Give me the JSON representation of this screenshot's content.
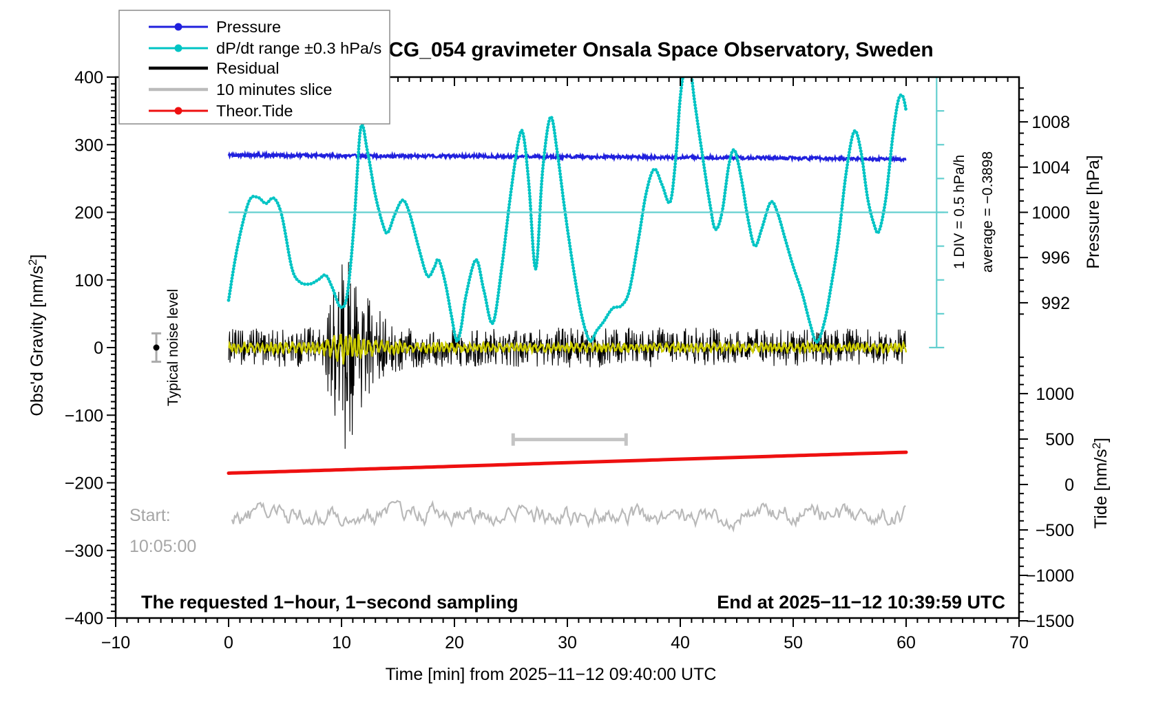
{
  "chart_data": {
    "type": "line",
    "title": "SCG_054 gravimeter Onsala Space Observatory, Sweden",
    "axes": {
      "x": {
        "label": "Time [min] from 2025−11−12 09:40:00 UTC",
        "min": -10,
        "max": 70,
        "major_step": 10,
        "minor_step": 1,
        "tick_values": [
          -10,
          0,
          10,
          20,
          30,
          40,
          50,
          60,
          70
        ],
        "tick_labels": [
          "−10",
          "0",
          "10",
          "20",
          "30",
          "40",
          "50",
          "60",
          "70"
        ]
      },
      "y_gravity": {
        "label": "Obs'd Gravity [nm/s²]",
        "min": -400,
        "max": 400,
        "major_step": 100,
        "minor_step": 10,
        "tick_values": [
          400,
          300,
          200,
          100,
          0,
          -100,
          -200,
          -300,
          -400
        ],
        "tick_labels": [
          "400",
          "300",
          "200",
          "100",
          "0",
          "−100",
          "−200",
          "−300",
          "−400"
        ]
      },
      "y_pressure": {
        "label": "Pressure [hPa]",
        "tick_values": [
          1008,
          1004,
          1000,
          996,
          992
        ],
        "tick_labels": [
          "1008",
          "1004",
          "1000",
          "996",
          "992"
        ],
        "minor_from": 1011,
        "minor_to": 991,
        "minor_step": 1
      },
      "y_tide": {
        "label": "Tide [nm/s²]",
        "tick_values": [
          1000,
          500,
          0,
          -500,
          -1000,
          -1500
        ],
        "tick_labels": [
          "1000",
          "500",
          "0",
          "−500",
          "−1000",
          "−1500"
        ],
        "minor_from": 1400,
        "minor_to": -1500,
        "minor_step": 100
      }
    },
    "legend": {
      "entries": [
        {
          "label": "Pressure",
          "color": "#2020dd",
          "marker": true,
          "line_width": 3
        },
        {
          "label": "dP/dt range ±0.3 hPa/s",
          "color": "#00c4c4",
          "marker": true,
          "line_width": 3
        },
        {
          "label": "Residual",
          "color": "#000000",
          "marker": false,
          "line_width": 4.5
        },
        {
          "label": "10 minutes slice",
          "color": "#bbbbbb",
          "marker": false,
          "line_width": 4.5
        },
        {
          "label": "Theor.Tide",
          "color": "#ee1010",
          "marker": true,
          "line_width": 3
        }
      ]
    },
    "series": {
      "pressure": {
        "name": "Pressure",
        "units": "hPa",
        "color": "#2020dd",
        "minutes_step": 5,
        "values_hpa": [
          1005.06,
          1005.03,
          1005.0,
          1004.98,
          1004.97,
          1004.94,
          1004.91,
          1004.89,
          1004.87,
          1004.84,
          1004.8,
          1004.74,
          1004.67
        ]
      },
      "dpdt": {
        "name": "dP/dt range ±0.3 hPa/s",
        "units": "display (gravity-axis scale), 1 DIV = 0.5 hPa/h",
        "color": "#00c4c4",
        "ref_color": "#63cfcf",
        "ref_line_level": 200,
        "scale_bar": {
          "x_min": 62.7,
          "g_from": 0,
          "g_to": 400,
          "div_units": 50
        },
        "points": [
          [
            0,
            70
          ],
          [
            0.8,
            150
          ],
          [
            1.8,
            216
          ],
          [
            2.6,
            222
          ],
          [
            3.3,
            213
          ],
          [
            4.0,
            221
          ],
          [
            4.7,
            196
          ],
          [
            5.6,
            118
          ],
          [
            6.3,
            97
          ],
          [
            7.2,
            94
          ],
          [
            8.0,
            101
          ],
          [
            8.6,
            107
          ],
          [
            9.2,
            88
          ],
          [
            9.9,
            60
          ],
          [
            10.5,
            78
          ],
          [
            11.1,
            180
          ],
          [
            11.7,
            325
          ],
          [
            12.3,
            290
          ],
          [
            13.0,
            225
          ],
          [
            13.7,
            180
          ],
          [
            14.1,
            170
          ],
          [
            14.7,
            196
          ],
          [
            15.4,
            218
          ],
          [
            16.0,
            200
          ],
          [
            16.8,
            150
          ],
          [
            17.6,
            106
          ],
          [
            18.2,
            118
          ],
          [
            18.6,
            130
          ],
          [
            19.2,
            95
          ],
          [
            19.7,
            50
          ],
          [
            20.2,
            10
          ],
          [
            20.6,
            30
          ],
          [
            21.0,
            75
          ],
          [
            21.9,
            130
          ],
          [
            22.6,
            85
          ],
          [
            23.4,
            36
          ],
          [
            24.2,
            120
          ],
          [
            25.0,
            230
          ],
          [
            25.7,
            308
          ],
          [
            26.1,
            315
          ],
          [
            26.6,
            240
          ],
          [
            27.2,
            116
          ],
          [
            27.8,
            260
          ],
          [
            28.5,
            341
          ],
          [
            29.1,
            290
          ],
          [
            29.8,
            200
          ],
          [
            30.6,
            110
          ],
          [
            31.3,
            45
          ],
          [
            32.0,
            10
          ],
          [
            32.6,
            25
          ],
          [
            33.2,
            38
          ],
          [
            34.0,
            58
          ],
          [
            34.8,
            62
          ],
          [
            35.5,
            85
          ],
          [
            36.3,
            160
          ],
          [
            37.0,
            230
          ],
          [
            37.7,
            264
          ],
          [
            38.4,
            240
          ],
          [
            39.1,
            215
          ],
          [
            39.6,
            280
          ],
          [
            40.0,
            370
          ],
          [
            40.4,
            412
          ],
          [
            40.9,
            408
          ],
          [
            41.3,
            360
          ],
          [
            42.0,
            280
          ],
          [
            42.6,
            215
          ],
          [
            43.1,
            175
          ],
          [
            43.7,
            200
          ],
          [
            44.3,
            270
          ],
          [
            44.8,
            292
          ],
          [
            45.4,
            250
          ],
          [
            46.0,
            190
          ],
          [
            46.6,
            150
          ],
          [
            47.2,
            175
          ],
          [
            48.0,
            215
          ],
          [
            48.6,
            200
          ],
          [
            49.3,
            160
          ],
          [
            50.0,
            120
          ],
          [
            50.8,
            80
          ],
          [
            51.5,
            35
          ],
          [
            52.1,
            8
          ],
          [
            52.8,
            40
          ],
          [
            53.4,
            95
          ],
          [
            54.0,
            160
          ],
          [
            54.7,
            260
          ],
          [
            55.4,
            320
          ],
          [
            56.0,
            290
          ],
          [
            56.6,
            220
          ],
          [
            57.2,
            180
          ],
          [
            57.6,
            172
          ],
          [
            58.2,
            220
          ],
          [
            58.8,
            310
          ],
          [
            59.3,
            365
          ],
          [
            59.7,
            372
          ],
          [
            60,
            350
          ]
        ]
      },
      "residual": {
        "name": "Residual",
        "units": "nm/s²",
        "color": "#000000",
        "spike_envelope": [
          [
            0,
            28
          ],
          [
            8,
            30
          ],
          [
            8.6,
            55
          ],
          [
            9.2,
            95
          ],
          [
            9.8,
            140
          ],
          [
            10.2,
            165
          ],
          [
            10.7,
            150
          ],
          [
            11.3,
            110
          ],
          [
            12,
            88
          ],
          [
            13,
            62
          ],
          [
            14,
            45
          ],
          [
            15,
            36
          ],
          [
            16,
            32
          ],
          [
            18,
            30
          ],
          [
            22,
            28
          ],
          [
            30,
            30
          ],
          [
            40,
            30
          ],
          [
            50,
            28
          ],
          [
            60,
            28
          ]
        ]
      },
      "smoothed_residual": {
        "name": "Residual (smoothed overlay)",
        "units": "nm/s²",
        "color": "#cccc00",
        "amp_envelope": [
          [
            0,
            8
          ],
          [
            8,
            9
          ],
          [
            9,
            16
          ],
          [
            10,
            26
          ],
          [
            10.6,
            28
          ],
          [
            11.4,
            22
          ],
          [
            12.5,
            16
          ],
          [
            14,
            11
          ],
          [
            16,
            9
          ],
          [
            20,
            8
          ],
          [
            30,
            7.5
          ],
          [
            60,
            7.5
          ]
        ]
      },
      "slice": {
        "name": "10 minutes slice",
        "color": "#b9b9b9",
        "center_display": -248,
        "amplitude_display": 22
      },
      "tide": {
        "name": "Theor.Tide",
        "units": "nm/s² (tide axis)",
        "color": "#ee1010",
        "minutes_step": 5,
        "values_tide": [
          125,
          143,
          162,
          181,
          200,
          220,
          240,
          259,
          279,
          298,
          317,
          336,
          355
        ]
      }
    },
    "markers": {
      "ten_minute_bar": {
        "x_from": 25.2,
        "x_to": 35.2,
        "g_level": -136,
        "color": "#c4c4c4"
      },
      "noise_marker": {
        "x": -6.4,
        "g": 0,
        "err": 21,
        "dot_color": "#000000",
        "bar_color": "#aaaaaa"
      }
    },
    "annotations": {
      "noise_label": "Typical noise level",
      "div_scale": "1 DIV = 0.5 hPa/h",
      "average": "average = −0.3898",
      "start_line1": "Start:",
      "start_line2": "10:05:00",
      "bottom_left": "The requested 1−hour, 1−second sampling",
      "bottom_right": "End at 2025−11−12 10:39:59 UTC"
    }
  }
}
